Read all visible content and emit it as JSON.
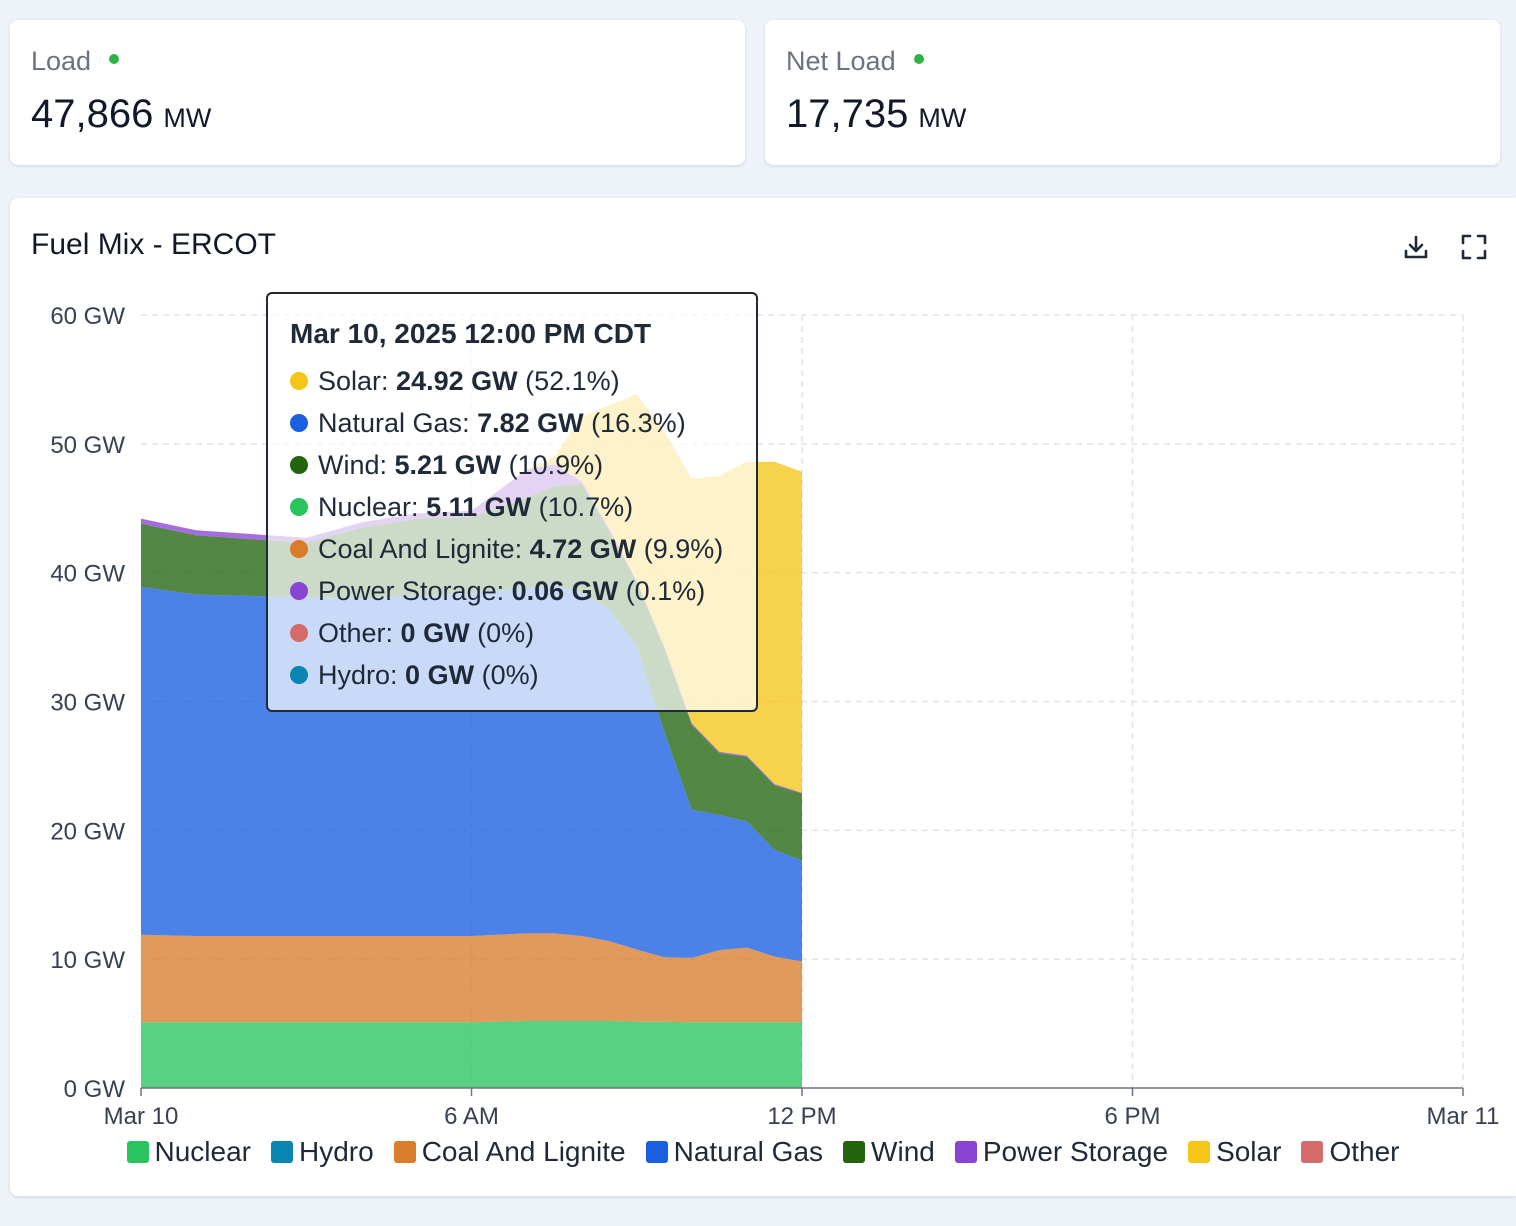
{
  "metrics": [
    {
      "label": "Load",
      "value": "47,866",
      "unit": "MW",
      "status_color": "#2fb344"
    },
    {
      "label": "Net Load",
      "value": "17,735",
      "unit": "MW",
      "status_color": "#2fb344"
    }
  ],
  "chart_card": {
    "title": "Fuel Mix - ERCOT",
    "download_icon": "download-icon",
    "fullscreen_icon": "fullscreen-icon"
  },
  "tooltip": {
    "title": "Mar 10, 2025 12:00 PM CDT",
    "rows": [
      {
        "name": "Solar",
        "value": "24.92 GW",
        "pct": "(52.1%)",
        "color": "#f5c518"
      },
      {
        "name": "Natural Gas",
        "value": "7.82 GW",
        "pct": "(16.3%)",
        "color": "#1a5fe0"
      },
      {
        "name": "Wind",
        "value": "5.21 GW",
        "pct": "(10.9%)",
        "color": "#23650f"
      },
      {
        "name": "Nuclear",
        "value": "5.11 GW",
        "pct": "(10.7%)",
        "color": "#2ac45f"
      },
      {
        "name": "Coal And Lignite",
        "value": "4.72 GW",
        "pct": "(9.9%)",
        "color": "#d97d2a"
      },
      {
        "name": "Power Storage",
        "value": "0.06 GW",
        "pct": "(0.1%)",
        "color": "#8a44d4"
      },
      {
        "name": "Other",
        "value": "0 GW",
        "pct": "(0%)",
        "color": "#d46a6a"
      },
      {
        "name": "Hydro",
        "value": "0 GW",
        "pct": "(0%)",
        "color": "#0a84b0"
      }
    ]
  },
  "chart_data": {
    "type": "area",
    "stacked": true,
    "x_unit": "hours after Mar 10, 2025 00:00 CDT",
    "x_ticks": [
      "Mar 10",
      "6 AM",
      "12 PM",
      "6 PM",
      "Mar 11"
    ],
    "x_tick_hours": [
      0,
      6,
      12,
      18,
      24
    ],
    "y_ticks": [
      "0 GW",
      "10 GW",
      "20 GW",
      "30 GW",
      "40 GW",
      "50 GW",
      "60 GW"
    ],
    "ylim": [
      0,
      60
    ],
    "xlim": [
      0,
      24
    ],
    "grid": true,
    "legend_position": "bottom",
    "x": [
      0,
      1,
      2,
      3,
      4,
      5,
      6,
      7,
      7.5,
      8,
      8.5,
      9,
      9.5,
      10,
      10.5,
      11,
      11.5,
      12
    ],
    "series": [
      {
        "name": "Nuclear",
        "color": "#2ac45f",
        "values": [
          5.1,
          5.1,
          5.1,
          5.1,
          5.1,
          5.1,
          5.1,
          5.2,
          5.2,
          5.2,
          5.2,
          5.15,
          5.15,
          5.1,
          5.1,
          5.1,
          5.1,
          5.11
        ]
      },
      {
        "name": "Hydro",
        "color": "#0a84b0",
        "values": [
          0,
          0,
          0,
          0,
          0,
          0,
          0,
          0,
          0,
          0,
          0,
          0,
          0,
          0,
          0,
          0,
          0,
          0
        ]
      },
      {
        "name": "Coal And Lignite",
        "color": "#d97d2a",
        "values": [
          6.8,
          6.7,
          6.7,
          6.7,
          6.7,
          6.7,
          6.7,
          6.8,
          6.8,
          6.6,
          6.2,
          5.6,
          5.0,
          5.0,
          5.6,
          5.8,
          5.1,
          4.72
        ]
      },
      {
        "name": "Natural Gas",
        "color": "#1a5fe0",
        "values": [
          27.0,
          26.5,
          26.4,
          26.3,
          26.2,
          26.4,
          26.6,
          26.8,
          27.0,
          26.6,
          25.8,
          23.5,
          17.5,
          11.5,
          10.5,
          9.8,
          8.3,
          7.82
        ]
      },
      {
        "name": "Wind",
        "color": "#23650f",
        "values": [
          4.9,
          4.6,
          4.4,
          4.2,
          5.5,
          6.0,
          5.9,
          7.0,
          7.7,
          8.5,
          6.0,
          5.0,
          6.5,
          6.6,
          4.8,
          5.0,
          5.0,
          5.21
        ]
      },
      {
        "name": "Power Storage",
        "color": "#8a44d4",
        "values": [
          0.4,
          0.4,
          0.4,
          0.4,
          0.4,
          0.4,
          0.5,
          2.2,
          1.7,
          0.2,
          0.2,
          0.1,
          0.1,
          0.1,
          0.1,
          0.1,
          0.1,
          0.06
        ]
      },
      {
        "name": "Solar",
        "color": "#f5c518",
        "values": [
          0,
          0,
          0,
          0,
          0,
          0,
          0,
          0,
          0.6,
          5.0,
          9.6,
          14.5,
          16.7,
          19.0,
          21.4,
          22.8,
          25.0,
          24.92
        ]
      },
      {
        "name": "Other",
        "color": "#d46a6a",
        "values": [
          0,
          0,
          0,
          0,
          0,
          0,
          0,
          0,
          0,
          0,
          0,
          0,
          0,
          0,
          0,
          0,
          0,
          0
        ]
      }
    ]
  }
}
